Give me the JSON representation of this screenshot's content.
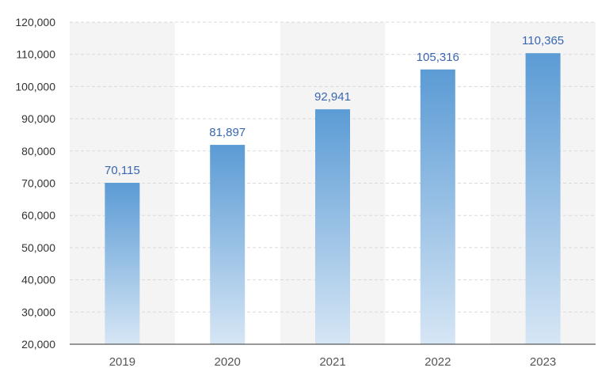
{
  "chart_data": {
    "type": "bar",
    "categories": [
      "2019",
      "2020",
      "2021",
      "2022",
      "2023"
    ],
    "values": [
      70115,
      81897,
      92941,
      105316,
      110365
    ],
    "value_labels": [
      "70,115",
      "81,897",
      "92,941",
      "105,316",
      "110,365"
    ],
    "ylim": [
      20000,
      120000
    ],
    "yticks": [
      20000,
      30000,
      40000,
      50000,
      60000,
      70000,
      80000,
      90000,
      100000,
      110000,
      120000
    ],
    "ytick_labels": [
      "20,000",
      "30,000",
      "40,000",
      "50,000",
      "60,000",
      "70,000",
      "80,000",
      "90,000",
      "100,000",
      "110,000",
      "120,000"
    ],
    "grid": true,
    "title": "",
    "xlabel": "",
    "ylabel": "",
    "colors": {
      "bar_top": "#5b9bd5",
      "bar_bottom": "#d6e6f5",
      "data_label": "#3a67b0",
      "band_shade": "#f4f4f4",
      "gridline": "#d9d9d9",
      "axis": "#333333"
    }
  }
}
